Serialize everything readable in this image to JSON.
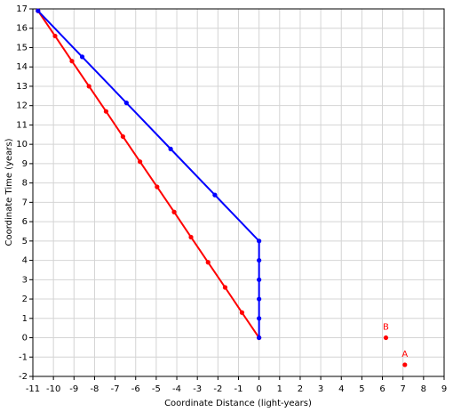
{
  "chart_data": {
    "type": "line",
    "xlabel": "Coordinate Distance (light-years)",
    "ylabel": "Coordinate Time (years)",
    "xlim": [
      -11,
      9
    ],
    "ylim": [
      -2,
      17
    ],
    "xticks": [
      -11,
      -10,
      -9,
      -8,
      -7,
      -6,
      -5,
      -4,
      -3,
      -2,
      -1,
      0,
      1,
      2,
      3,
      4,
      5,
      6,
      7,
      8,
      9
    ],
    "yticks": [
      -2,
      -1,
      0,
      1,
      2,
      3,
      4,
      5,
      6,
      7,
      8,
      9,
      10,
      11,
      12,
      13,
      14,
      15,
      16,
      17
    ],
    "grid": true,
    "series": [
      {
        "color": "#ff0000",
        "mode": "lines+markers",
        "x": [
          0,
          -0.83,
          -1.65,
          -2.48,
          -3.31,
          -4.13,
          -4.96,
          -5.79,
          -6.62,
          -7.44,
          -8.27,
          -9.1,
          -9.92,
          -10.75
        ],
        "values": [
          0,
          1.3,
          2.6,
          3.9,
          5.2,
          6.5,
          7.8,
          9.1,
          10.4,
          11.7,
          13,
          14.3,
          15.6,
          16.9
        ]
      },
      {
        "color": "#0000ff",
        "mode": "lines+markers",
        "x": [
          0,
          0,
          0,
          0,
          0,
          0,
          -2.15,
          -4.3,
          -6.45,
          -8.6,
          -10.75
        ],
        "values": [
          0,
          1,
          2,
          3,
          4,
          5,
          7.38,
          9.76,
          12.14,
          14.52,
          16.9
        ]
      },
      {
        "name": "B",
        "color": "#ff0000",
        "mode": "markers",
        "x": [
          6.17
        ],
        "values": [
          0
        ]
      },
      {
        "name": "A",
        "color": "#ff0000",
        "mode": "markers",
        "x": [
          7.09
        ],
        "values": [
          -1.4
        ]
      }
    ]
  }
}
